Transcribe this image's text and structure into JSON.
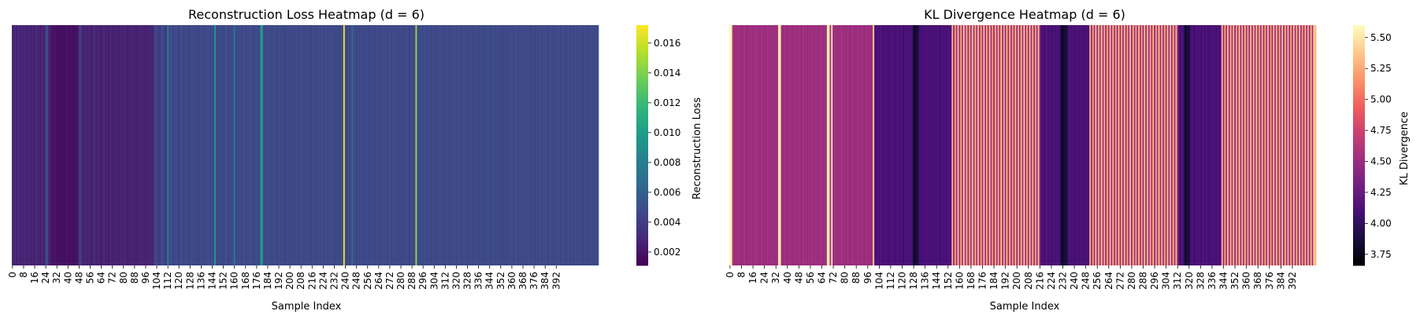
{
  "chart_data": [
    {
      "type": "heatmap",
      "title": "Reconstruction Loss Heatmap (d = 6)",
      "xlabel": "Sample Index",
      "ylabel": "",
      "colorbar_label": "Reconstruction Loss",
      "colormap": "viridis",
      "n_samples": 400,
      "x_tick_step": 8,
      "x_ticks": [
        0,
        8,
        16,
        24,
        32,
        40,
        48,
        56,
        64,
        72,
        80,
        88,
        96,
        104,
        112,
        120,
        128,
        136,
        144,
        152,
        160,
        168,
        176,
        184,
        192,
        200,
        208,
        216,
        224,
        232,
        240,
        248,
        256,
        264,
        272,
        280,
        288,
        296,
        304,
        312,
        320,
        328,
        336,
        344,
        352,
        360,
        368,
        376,
        384,
        392
      ],
      "colorbar_range": [
        0.0011,
        0.0172
      ],
      "colorbar_ticks": [
        "0.002",
        "0.004",
        "0.006",
        "0.008",
        "0.010",
        "0.012",
        "0.014",
        "0.016"
      ],
      "colorbar_tick_values": [
        0.002,
        0.004,
        0.006,
        0.008,
        0.01,
        0.012,
        0.014,
        0.016
      ],
      "values": [
        0.0028,
        0.0026,
        0.003,
        0.0024,
        0.0032,
        0.0027,
        0.0025,
        0.0029,
        0.0026,
        0.0031,
        0.0023,
        0.0028,
        0.003,
        0.0025,
        0.0027,
        0.0029,
        0.0024,
        0.0033,
        0.0026,
        0.0028,
        0.0022,
        0.0031,
        0.0027,
        0.0025,
        0.0042,
        0.0052,
        0.0029,
        0.0024,
        0.0021,
        0.0019,
        0.0018,
        0.002,
        0.0017,
        0.0016,
        0.0018,
        0.0019,
        0.0017,
        0.0018,
        0.0016,
        0.002,
        0.0018,
        0.0017,
        0.0019,
        0.0016,
        0.0018,
        0.0017,
        0.0019,
        0.0018,
        0.0036,
        0.0042,
        0.0031,
        0.0024,
        0.0027,
        0.0029,
        0.0025,
        0.003,
        0.0026,
        0.0024,
        0.0028,
        0.0032,
        0.0027,
        0.0025,
        0.0029,
        0.0026,
        0.0023,
        0.0028,
        0.003,
        0.0025,
        0.0027,
        0.0024,
        0.0026,
        0.0029,
        0.0023,
        0.0027,
        0.0025,
        0.0028,
        0.0024,
        0.0026,
        0.0029,
        0.0025,
        0.003,
        0.0026,
        0.0028,
        0.0024,
        0.0027,
        0.0025,
        0.0029,
        0.0026,
        0.0028,
        0.0024,
        0.0027,
        0.0025,
        0.0029,
        0.0026,
        0.0028,
        0.0025,
        0.0027,
        0.0024,
        0.0029,
        0.0026,
        0.0028,
        0.0025,
        0.0039,
        0.0044,
        0.0048,
        0.004,
        0.0036,
        0.0044,
        0.005,
        0.0046,
        0.0038,
        0.004,
        0.0084,
        0.0046,
        0.0052,
        0.0048,
        0.0042,
        0.0045,
        0.005,
        0.0047,
        0.0041,
        0.0049,
        0.0052,
        0.0043,
        0.0046,
        0.005,
        0.0044,
        0.0048,
        0.0041,
        0.0053,
        0.0047,
        0.0045,
        0.005,
        0.0042,
        0.0048,
        0.0044,
        0.0051,
        0.0046,
        0.0043,
        0.0049,
        0.0045,
        0.0052,
        0.0047,
        0.0044,
        0.005,
        0.0046,
        0.01,
        0.0048,
        0.0043,
        0.0051,
        0.0045,
        0.0049,
        0.0044,
        0.0047,
        0.0052,
        0.0046,
        0.0043,
        0.005,
        0.0045,
        0.0048,
        0.0078,
        0.0044,
        0.0049,
        0.0046,
        0.0051,
        0.0043,
        0.0047,
        0.005,
        0.0045,
        0.0048,
        0.0044,
        0.0052,
        0.0046,
        0.0049,
        0.0043,
        0.0047,
        0.005,
        0.0045,
        0.0048,
        0.009,
        0.0102,
        0.0047,
        0.0044,
        0.0051,
        0.0046,
        0.0049,
        0.0043,
        0.0048,
        0.0045,
        0.005,
        0.0047,
        0.0044,
        0.0052,
        0.0046,
        0.0049,
        0.0045,
        0.0048,
        0.0043,
        0.005,
        0.0047,
        0.0045,
        0.0051,
        0.0044,
        0.0048,
        0.0046,
        0.0049,
        0.0043,
        0.0047,
        0.005,
        0.0045,
        0.0048,
        0.0044,
        0.0051,
        0.0046,
        0.0049,
        0.0043,
        0.0047,
        0.005,
        0.0045,
        0.0048,
        0.0044,
        0.0052,
        0.0046,
        0.0049,
        0.0045,
        0.0047,
        0.005,
        0.0044,
        0.0048,
        0.0046,
        0.0051,
        0.0043,
        0.0049,
        0.0045,
        0.0048,
        0.0047,
        0.0044,
        0.005,
        0.0046,
        0.0172,
        0.0048,
        0.0043,
        0.0051,
        0.0045,
        0.0049,
        0.0068,
        0.0047,
        0.005,
        0.0044,
        0.0048,
        0.0046,
        0.0051,
        0.0043,
        0.0049,
        0.0045,
        0.0048,
        0.0047,
        0.0044,
        0.005,
        0.0046,
        0.0049,
        0.0043,
        0.0047,
        0.0051,
        0.0045,
        0.0048,
        0.0044,
        0.005,
        0.0046,
        0.0049,
        0.0045,
        0.0047,
        0.0051,
        0.0044,
        0.0048,
        0.0046,
        0.005,
        0.0043,
        0.0049,
        0.0045,
        0.0048,
        0.0047,
        0.0044,
        0.005,
        0.0046,
        0.0049,
        0.0043,
        0.0047,
        0.0051,
        0.0045,
        0.0048,
        0.015,
        0.005,
        0.0046,
        0.0049,
        0.0045,
        0.0047,
        0.0051,
        0.0044,
        0.0048,
        0.0046,
        0.005,
        0.0043,
        0.0049,
        0.0045,
        0.0048,
        0.0047,
        0.0044,
        0.005,
        0.0046,
        0.0049,
        0.0043,
        0.0047,
        0.0051,
        0.0045,
        0.0048,
        0.0044,
        0.005,
        0.0046,
        0.0049,
        0.0045,
        0.0047,
        0.0051,
        0.0044,
        0.0048,
        0.0046,
        0.005,
        0.0043,
        0.0049,
        0.0045,
        0.0048,
        0.0047,
        0.0044,
        0.005,
        0.0046,
        0.0049,
        0.0043,
        0.0047,
        0.0051,
        0.0045,
        0.0048,
        0.0044,
        0.005,
        0.0046,
        0.0049,
        0.0045,
        0.0047,
        0.0051,
        0.0044,
        0.0048,
        0.0046,
        0.005,
        0.0043,
        0.0049,
        0.0045,
        0.0048,
        0.0047,
        0.0044,
        0.005,
        0.0046,
        0.0049,
        0.0043,
        0.0047,
        0.0051,
        0.0045,
        0.0048,
        0.0044,
        0.005,
        0.0046,
        0.0049,
        0.0045,
        0.0047,
        0.0051,
        0.0044,
        0.0048,
        0.0046,
        0.005,
        0.0043,
        0.0049,
        0.0045,
        0.0048,
        0.0047,
        0.0044,
        0.005,
        0.0046,
        0.0049,
        0.0043,
        0.0047,
        0.0051,
        0.0045,
        0.0048,
        0.0044,
        0.005,
        0.0046,
        0.0049,
        0.0045,
        0.0047,
        0.0051,
        0.0044,
        0.0048,
        0.0046,
        0.005,
        0.0043,
        0.0049,
        0.0045,
        0.0048,
        0.0047,
        0.0044,
        0.005,
        0.0046,
        0.0049,
        0.0043,
        0.0047,
        0.0051,
        0.0045,
        0.0048,
        0.0044,
        0.005,
        0.0046,
        0.0049,
        0.0045,
        0.0047,
        0.0051
      ]
    },
    {
      "type": "heatmap",
      "title": "KL Divergence Heatmap (d = 6)",
      "xlabel": "Sample Index",
      "ylabel": "",
      "colorbar_label": "KL Divergence",
      "colormap": "magma",
      "n_samples": 400,
      "x_tick_step": 8,
      "x_ticks": [
        0,
        8,
        16,
        24,
        32,
        40,
        48,
        56,
        64,
        72,
        80,
        88,
        96,
        104,
        112,
        120,
        128,
        136,
        144,
        152,
        160,
        168,
        176,
        184,
        192,
        200,
        208,
        216,
        224,
        232,
        240,
        248,
        256,
        264,
        272,
        280,
        288,
        296,
        304,
        312,
        320,
        328,
        336,
        344,
        352,
        360,
        368,
        376,
        384,
        392
      ],
      "colorbar_range": [
        3.66,
        5.6
      ],
      "colorbar_ticks": [
        "3.75",
        "4.00",
        "4.25",
        "4.50",
        "4.75",
        "5.00",
        "5.25",
        "5.50"
      ],
      "colorbar_tick_values": [
        3.75,
        4.0,
        4.25,
        4.5,
        4.75,
        5.0,
        5.25,
        5.5
      ],
      "values": [
        5.6,
        5.55,
        4.62,
        4.48,
        4.55,
        4.5,
        4.58,
        4.47,
        4.53,
        4.49,
        4.56,
        4.51,
        4.46,
        4.54,
        4.5,
        4.57,
        4.48,
        4.52,
        4.55,
        4.49,
        4.53,
        4.47,
        4.56,
        4.5,
        4.52,
        4.48,
        4.55,
        4.51,
        4.54,
        4.49,
        4.57,
        4.48,
        4.53,
        4.5,
        5.55,
        5.5,
        4.52,
        4.49,
        4.55,
        4.51,
        4.47,
        4.56,
        4.5,
        4.53,
        4.48,
        4.54,
        4.52,
        4.49,
        4.55,
        4.51,
        4.46,
        4.57,
        4.5,
        4.53,
        4.48,
        4.54,
        4.51,
        4.56,
        4.49,
        4.52,
        4.55,
        4.48,
        4.53,
        4.5,
        4.57,
        4.49,
        4.54,
        4.51,
        5.55,
        5.5,
        4.53,
        5.52,
        4.48,
        4.55,
        4.51,
        4.54,
        4.49,
        4.52,
        4.56,
        4.5,
        4.53,
        4.48,
        4.55,
        4.51,
        4.46,
        4.57,
        4.5,
        4.53,
        4.48,
        4.54,
        4.52,
        4.49,
        4.55,
        4.51,
        4.47,
        4.56,
        4.5,
        4.53,
        4.48,
        4.54,
        5.4,
        4.2,
        4.08,
        4.14,
        4.1,
        4.16,
        4.12,
        4.09,
        4.15,
        4.11,
        4.13,
        4.07,
        4.16,
        4.1,
        4.14,
        4.08,
        4.12,
        4.15,
        4.09,
        4.13,
        4.11,
        4.06,
        4.14,
        4.1,
        4.15,
        4.08,
        4.13,
        4.11,
        3.82,
        3.78,
        3.9,
        3.85,
        4.1,
        4.12,
        4.07,
        4.14,
        4.09,
        4.15,
        4.11,
        4.13,
        4.08,
        4.16,
        4.1,
        4.12,
        4.09,
        4.14,
        4.11,
        4.07,
        4.15,
        4.1,
        4.13,
        4.08,
        4.16,
        4.11,
        4.12,
        5.3,
        4.45,
        5.2,
        4.52,
        5.35,
        4.48,
        5.25,
        4.55,
        5.4,
        4.5,
        5.3,
        4.47,
        5.22,
        4.53,
        5.38,
        4.49,
        5.28,
        4.56,
        5.32,
        4.51,
        5.26,
        4.48,
        5.36,
        4.54,
        5.24,
        4.5,
        5.34,
        4.52,
        5.2,
        4.47,
        5.3,
        4.55,
        5.27,
        4.49,
        5.37,
        4.53,
        5.23,
        4.5,
        5.33,
        4.48,
        5.29,
        4.54,
        5.21,
        4.51,
        5.35,
        4.47,
        5.26,
        4.55,
        5.31,
        4.49,
        5.38,
        4.52,
        5.24,
        4.5,
        5.34,
        4.48,
        5.28,
        4.53,
        5.22,
        4.51,
        5.36,
        4.46,
        4.1,
        4.14,
        4.08,
        4.12,
        4.16,
        4.09,
        4.13,
        4.11,
        4.07,
        4.15,
        4.1,
        4.14,
        4.12,
        4.08,
        3.8,
        3.76,
        3.88,
        3.82,
        3.92,
        4.1,
        4.14,
        4.09,
        4.13,
        4.11,
        4.07,
        4.16,
        4.1,
        4.12,
        4.15,
        4.08,
        4.13,
        4.11,
        4.14,
        4.09,
        5.3,
        4.45,
        5.22,
        4.52,
        5.36,
        4.48,
        5.26,
        4.55,
        5.38,
        4.5,
        5.28,
        4.47,
        5.24,
        4.53,
        5.34,
        4.49,
        5.3,
        4.56,
        5.2,
        4.51,
        5.35,
        4.48,
        5.27,
        4.54,
        5.32,
        4.5,
        5.23,
        4.52,
        5.37,
        4.47,
        5.29,
        4.55,
        5.25,
        4.49,
        5.33,
        4.53,
        5.21,
        4.5,
        5.36,
        4.48,
        5.31,
        4.54,
        5.26,
        4.51,
        5.34,
        4.47,
        5.22,
        4.55,
        5.38,
        4.49,
        5.28,
        4.52,
        5.24,
        4.5,
        5.35,
        4.48,
        5.3,
        4.53,
        5.27,
        4.51,
        5.33,
        4.46,
        4.12,
        4.08,
        4.14,
        4.1,
        3.86,
        3.8,
        3.92,
        3.84,
        4.09,
        4.13,
        4.11,
        4.07,
        4.15,
        4.1,
        4.14,
        4.12,
        4.08,
        4.16,
        4.09,
        4.13,
        4.11,
        4.07,
        4.15,
        4.1,
        4.14,
        4.12,
        4.08,
        4.16,
        4.09,
        4.13,
        5.3,
        4.48,
        5.24,
        4.52,
        5.36,
        4.49,
        5.28,
        4.55,
        5.33,
        4.5,
        5.22,
        4.53,
        5.38,
        4.47,
        5.27,
        4.54,
        5.31,
        4.51,
        5.25,
        4.48,
        5.35,
        4.52,
        5.29,
        4.5,
        5.37,
        4.49,
        5.23,
        4.55,
        5.32,
        4.47,
        5.26,
        4.53,
        5.34,
        4.51,
        5.21,
        4.48,
        5.36,
        4.54,
        5.3,
        4.5,
        5.24,
        4.52,
        5.38,
        4.49,
        5.28,
        4.55,
        5.33,
        4.47,
        5.25,
        4.53,
        5.35,
        4.51,
        5.29,
        4.48,
        5.37,
        4.52,
        5.22,
        4.5,
        5.31,
        4.54,
        5.27,
        4.49,
        5.34,
        4.53,
        5.4,
        5.3
      ]
    }
  ]
}
